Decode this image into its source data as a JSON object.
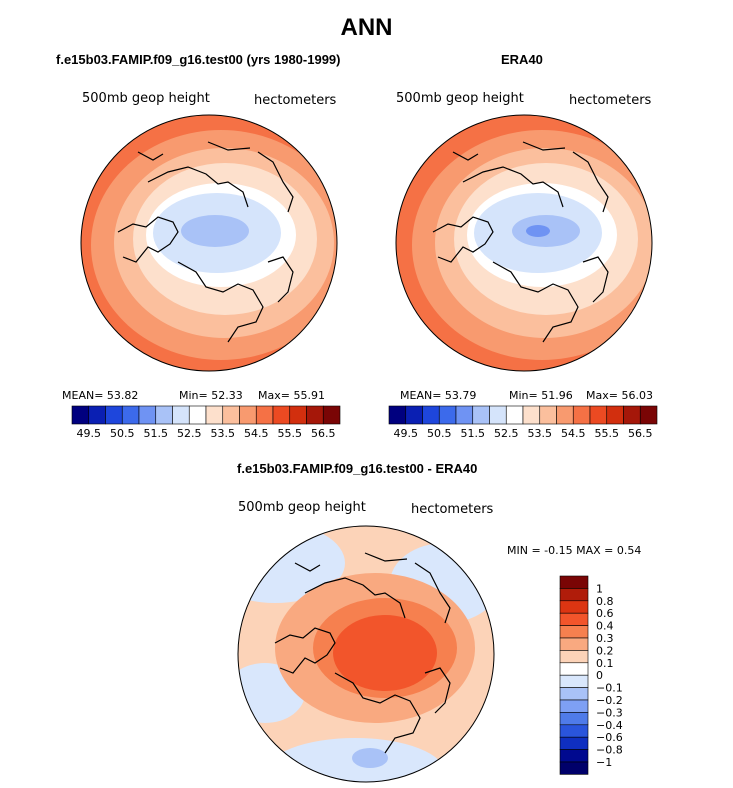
{
  "figure": {
    "title": "ANN"
  },
  "panels": [
    {
      "title": "f.e15b03.FAMIP.f09_g16.test00 (yrs 1980-1999)",
      "variable_label": "500mb geop height",
      "units_label": "hectometers",
      "stats_text": {
        "mean": "MEAN=   53.82",
        "min": "Min=   52.33",
        "max": "Max=   55.91"
      }
    },
    {
      "title": "ERA40",
      "variable_label": "500mb geop height",
      "units_label": "hectometers",
      "stats_text": {
        "mean": "MEAN=   53.79",
        "min": "Min=   51.96",
        "max": "Max=   56.03"
      }
    },
    {
      "title": "f.e15b03.FAMIP.f09_g16.test00 - ERA40",
      "variable_label": "500mb geop height",
      "units_label": "hectometers",
      "stats_text": {
        "minmax": "MIN =   -0.15  MAX =     0.54"
      }
    }
  ],
  "colorbar_abs": {
    "tick_labels": [
      "49.5",
      "50.5",
      "51.5",
      "52.5",
      "53.5",
      "54.5",
      "55.5",
      "56.5"
    ],
    "colors": [
      "#00007f",
      "#0a1fb3",
      "#1e46dc",
      "#3c6aeb",
      "#6f93f3",
      "#a9c2f7",
      "#d5e4fb",
      "#ffffff",
      "#fde0cc",
      "#fbbf9d",
      "#f89a6f",
      "#f57145",
      "#ec4a22",
      "#d22f0e",
      "#a51709",
      "#7a0505"
    ]
  },
  "colorbar_diff": {
    "tick_labels": [
      "1",
      "0.8",
      "0.6",
      "0.4",
      "0.3",
      "0.2",
      "0.1",
      "0",
      "−0.1",
      "−0.2",
      "−0.3",
      "−0.4",
      "−0.6",
      "−0.8",
      "−1"
    ],
    "colors": [
      "#7a0505",
      "#b01c0a",
      "#dc3512",
      "#f2552b",
      "#f6804f",
      "#f9a980",
      "#fcd3b8",
      "#ffffff",
      "#d9e7fc",
      "#a9c2f7",
      "#7ea0f4",
      "#4f7be9",
      "#2a55dc",
      "#0f2fc0",
      "#00098f",
      "#00006a"
    ]
  },
  "chart_data": [
    {
      "type": "heatmap",
      "projection": "polar stereographic, north pole",
      "title": "f.e15b03.FAMIP.f09_g16.test00 (yrs 1980-1999)",
      "variable": "500mb geop height",
      "units": "hectometers",
      "mean": 53.82,
      "min": 52.33,
      "max": 55.91,
      "colorbar_ticks": [
        49.5,
        50.5,
        51.5,
        52.5,
        53.5,
        54.5,
        55.5,
        56.5
      ]
    },
    {
      "type": "heatmap",
      "projection": "polar stereographic, north pole",
      "title": "ERA40",
      "variable": "500mb geop height",
      "units": "hectometers",
      "mean": 53.79,
      "min": 51.96,
      "max": 56.03,
      "colorbar_ticks": [
        49.5,
        50.5,
        51.5,
        52.5,
        53.5,
        54.5,
        55.5,
        56.5
      ]
    },
    {
      "type": "heatmap",
      "projection": "polar stereographic, north pole",
      "title": "f.e15b03.FAMIP.f09_g16.test00 - ERA40",
      "variable": "500mb geop height",
      "units": "hectometers",
      "min": -0.15,
      "max": 0.54,
      "colorbar_ticks": [
        -1,
        -0.8,
        -0.6,
        -0.4,
        -0.3,
        -0.2,
        -0.1,
        0,
        0.1,
        0.2,
        0.3,
        0.4,
        0.6,
        0.8,
        1
      ]
    }
  ]
}
